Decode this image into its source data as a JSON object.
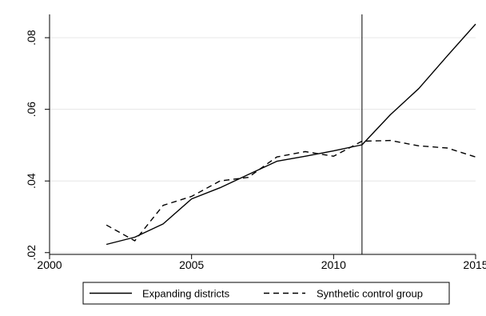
{
  "chart_data": {
    "type": "line",
    "title": "",
    "xlabel": "",
    "ylabel": "",
    "x": [
      2002,
      2003,
      2004,
      2005,
      2006,
      2007,
      2008,
      2009,
      2010,
      2011,
      2012,
      2013,
      2014,
      2015
    ],
    "series": [
      {
        "name": "Expanding districts",
        "style": "solid",
        "values": [
          0.0223,
          0.0243,
          0.028,
          0.035,
          0.0381,
          0.0418,
          0.0455,
          0.0469,
          0.0484,
          0.0501,
          0.0585,
          0.0658,
          0.0749,
          0.0838
        ]
      },
      {
        "name": "Synthetic control group",
        "style": "dashed",
        "values": [
          0.0277,
          0.0233,
          0.0332,
          0.0357,
          0.04,
          0.041,
          0.0467,
          0.0482,
          0.0469,
          0.0511,
          0.0513,
          0.0498,
          0.0492,
          0.0467
        ]
      }
    ],
    "xlim": [
      2000,
      2015
    ],
    "ylim": [
      0.0195,
      0.0865
    ],
    "x_ticks": [
      2000,
      2005,
      2010,
      2015
    ],
    "x_tick_labels": [
      "2000",
      "2005",
      "2010",
      "2015"
    ],
    "y_ticks": [
      0.02,
      0.04,
      0.06,
      0.08
    ],
    "y_tick_labels": [
      ".02",
      ".04",
      ".06",
      ".08"
    ],
    "vline_x": 2011,
    "grid": true,
    "legend_position": "bottom",
    "colors": {
      "line": "#000000",
      "grid": "#e6e6e6",
      "axis": "#000000",
      "background": "#ffffff"
    }
  }
}
